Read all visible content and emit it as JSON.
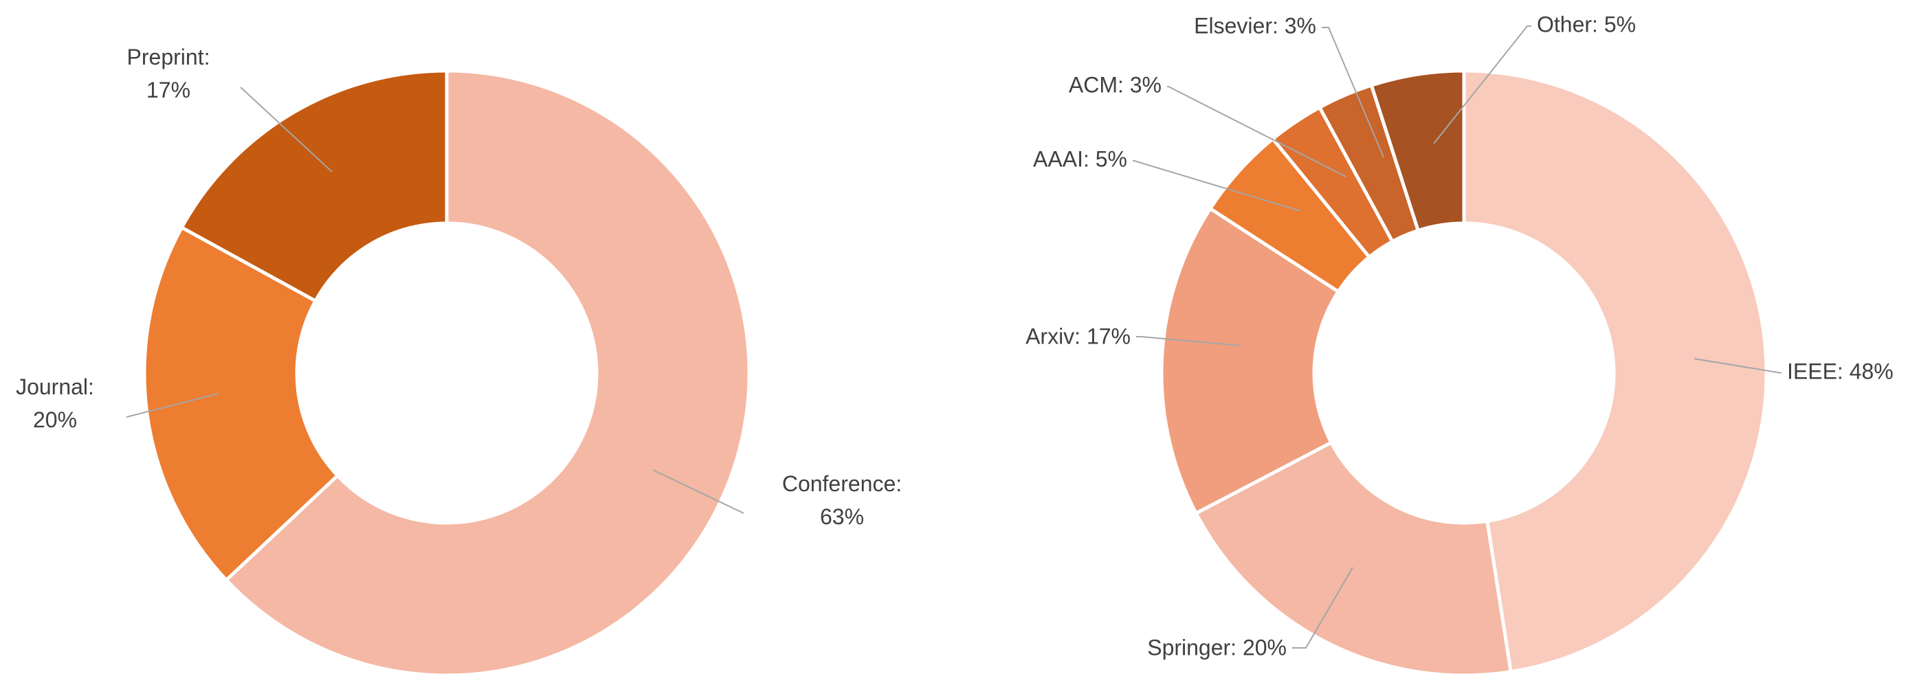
{
  "chart_data": [
    {
      "type": "pie",
      "variant": "donut",
      "title": "",
      "slices": [
        {
          "label": "Conference",
          "value": 63,
          "display_label": "Conference:",
          "display_value": "63%",
          "color": "#F4B8A4"
        },
        {
          "label": "Journal",
          "value": 20,
          "display_label": "Journal:",
          "display_value": "20%",
          "color": "#ED7D31"
        },
        {
          "label": "Preprint",
          "value": 17,
          "display_label": "Preprint:",
          "display_value": "17%",
          "color": "#C55A11"
        }
      ]
    },
    {
      "type": "pie",
      "variant": "donut",
      "title": "",
      "slices": [
        {
          "label": "IEEE",
          "value": 48,
          "display_label": "IEEE: 48%",
          "color": "#F8CBBD"
        },
        {
          "label": "Springer",
          "value": 20,
          "display_label": "Springer: 20%",
          "color": "#F4B8A4"
        },
        {
          "label": "Arxiv",
          "value": 17,
          "display_label": "Arxiv: 17%",
          "color": "#F09E7E"
        },
        {
          "label": "AAAI",
          "value": 5,
          "display_label": "AAAI: 5%",
          "color": "#ED7D31"
        },
        {
          "label": "ACM",
          "value": 3,
          "display_label": "ACM: 3%",
          "color": "#DE7030"
        },
        {
          "label": "Elsevier",
          "value": 3,
          "display_label": "Elsevier: 3%",
          "color": "#C9642A"
        },
        {
          "label": "Other",
          "value": 5,
          "display_label": "Other: 5%",
          "color": "#A65222"
        }
      ]
    }
  ]
}
